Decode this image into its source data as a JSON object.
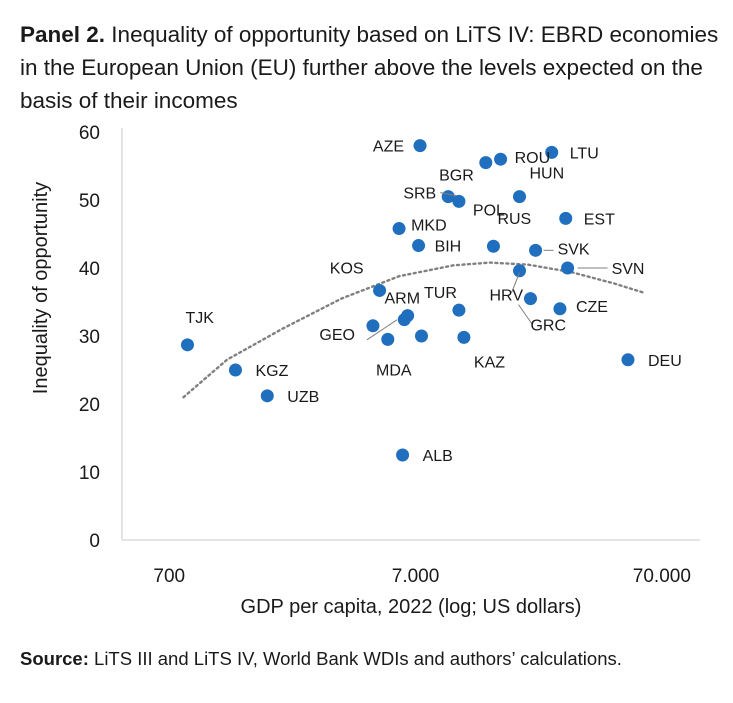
{
  "panel": {
    "title_bold": "Panel 2.",
    "title_text": " Inequality of opportunity based on LiTS IV: EBRD economies in the European Union (EU) further above the levels expected on the basis of their incomes"
  },
  "source": {
    "label": "Source:",
    "text": " LiTS III and LiTS IV, World Bank WDIs and authors’ calculations."
  },
  "colors": {
    "point": "#1f6fbe",
    "trend": "#808080",
    "axis": "#c8c8c8"
  },
  "chart_data": {
    "type": "scatter",
    "xscale": "log",
    "xlabel": "GDP per capita, 2022 (log; US dollars)",
    "ylabel": "Inequality of opportunity",
    "xlim": [
      450,
      100000
    ],
    "ylim": [
      0,
      60
    ],
    "xticks": [
      700,
      7000,
      70000
    ],
    "xtick_labels": [
      "700",
      "7.000",
      "70.000"
    ],
    "yticks": [
      0,
      10,
      20,
      30,
      40,
      50,
      60
    ],
    "grid": false,
    "points": [
      {
        "label": "AZE",
        "x": 7300,
        "y": 58.0
      },
      {
        "label": "ROU",
        "x": 15500,
        "y": 56.0
      },
      {
        "label": "LTU",
        "x": 25000,
        "y": 57.0
      },
      {
        "label": "BGR",
        "x": 13500,
        "y": 55.5
      },
      {
        "label": "HUN",
        "x": 18500,
        "y": 50.5
      },
      {
        "label": "SRB",
        "x": 9500,
        "y": 50.5
      },
      {
        "label": "POL",
        "x": 10500,
        "y": 49.8
      },
      {
        "label": "EST",
        "x": 28500,
        "y": 47.3
      },
      {
        "label": "MKD",
        "x": 6000,
        "y": 45.8
      },
      {
        "label": "BIH",
        "x": 7200,
        "y": 43.3
      },
      {
        "label": "RUS",
        "x": 14500,
        "y": 43.2
      },
      {
        "label": "SVK",
        "x": 21500,
        "y": 42.6
      },
      {
        "label": "SVN",
        "x": 29000,
        "y": 40.0
      },
      {
        "label": "KOS",
        "x": 5000,
        "y": 36.7
      },
      {
        "label": "TUR",
        "x": 10500,
        "y": 33.8
      },
      {
        "label": "ARM",
        "x": 6300,
        "y": 32.4
      },
      {
        "label": "HRV",
        "x": 18500,
        "y": 39.6
      },
      {
        "label": "GRC",
        "x": 20500,
        "y": 35.5
      },
      {
        "label": "CZE",
        "x": 27000,
        "y": 34.0
      },
      {
        "label": "GEO",
        "x": 4700,
        "y": 31.5
      },
      {
        "label": "MDA",
        "x": 5400,
        "y": 29.5
      },
      {
        "label": "KAZ",
        "x": 11000,
        "y": 29.8
      },
      {
        "label": "TJK",
        "x": 830,
        "y": 28.7
      },
      {
        "label": "KGZ",
        "x": 1300,
        "y": 25.0
      },
      {
        "label": "UZB",
        "x": 1750,
        "y": 21.2
      },
      {
        "label": "DEU",
        "x": 51000,
        "y": 26.5
      },
      {
        "label": "ALB",
        "x": 6200,
        "y": 12.5
      },
      {
        "label": "",
        "x": 7400,
        "y": 30.0
      },
      {
        "label": "",
        "x": 6500,
        "y": 33.0
      }
    ],
    "trend": [
      {
        "x": 800,
        "y": 21.0
      },
      {
        "x": 1200,
        "y": 26.5
      },
      {
        "x": 2000,
        "y": 31.0
      },
      {
        "x": 3500,
        "y": 35.5
      },
      {
        "x": 6000,
        "y": 38.8
      },
      {
        "x": 10000,
        "y": 40.4
      },
      {
        "x": 14000,
        "y": 40.8
      },
      {
        "x": 20000,
        "y": 40.5
      },
      {
        "x": 30000,
        "y": 39.4
      },
      {
        "x": 45000,
        "y": 37.7
      },
      {
        "x": 60000,
        "y": 36.3
      }
    ]
  }
}
